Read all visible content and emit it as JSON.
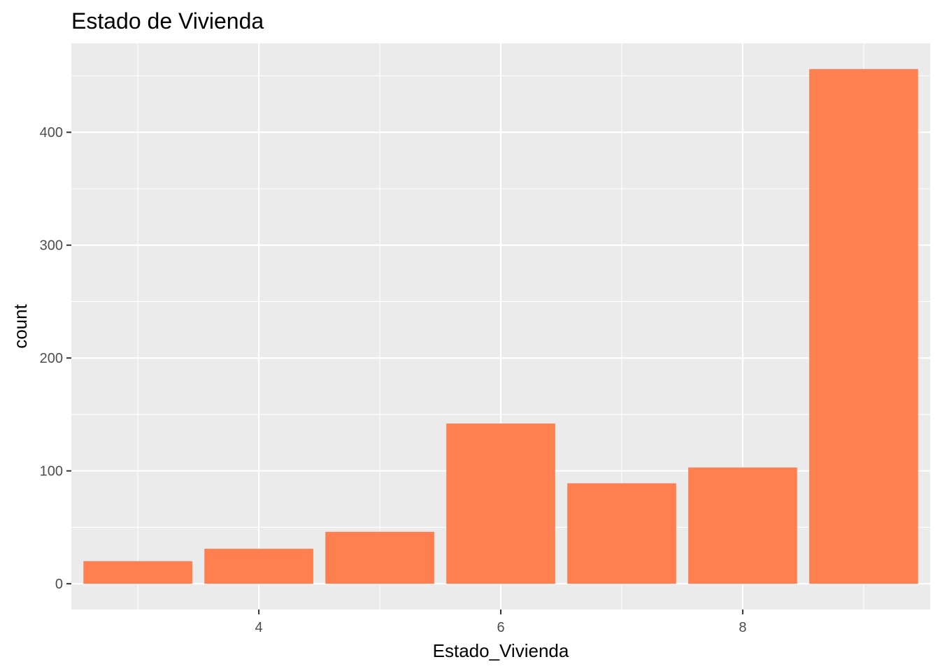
{
  "chart_data": {
    "type": "bar",
    "title": "Estado de Vivienda",
    "xlabel": "Estado_Vivienda",
    "ylabel": "count",
    "x": [
      3,
      4,
      5,
      6,
      7,
      8,
      9
    ],
    "values": [
      20,
      31,
      46,
      142,
      89,
      103,
      456
    ],
    "xlim": [
      2.45,
      9.55
    ],
    "ylim": [
      -22.8,
      478.8
    ],
    "xticks": [
      4,
      6,
      8
    ],
    "xtick_labels": [
      "4",
      "6",
      "8"
    ],
    "yticks": [
      0,
      100,
      200,
      300,
      400
    ],
    "ytick_labels": [
      "0",
      "100",
      "200",
      "300",
      "400"
    ],
    "bar_color": "#FF7F50",
    "panel_background": "#EBEBEB",
    "grid": true
  }
}
